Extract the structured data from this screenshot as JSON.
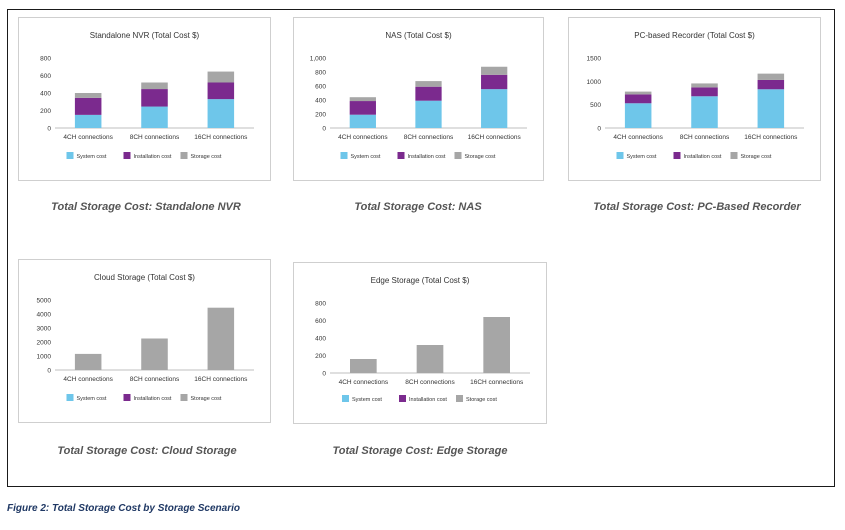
{
  "figure_caption": "Figure 2: Total Storage Cost by Storage Scenario",
  "colors": {
    "system": "#6ec6ea",
    "installation": "#7b2a8e",
    "storage": "#a6a6a6"
  },
  "chart_data": [
    {
      "type": "bar",
      "stacked": true,
      "title": "Standalone NVR (Total Cost $)",
      "caption": "Total Storage Cost: Standalone NVR",
      "categories": [
        "4CH connections",
        "8CH connections",
        "16CH connections"
      ],
      "ylim": [
        0,
        800
      ],
      "yticks": [
        "0",
        "200",
        "400",
        "600",
        "800"
      ],
      "series": [
        {
          "name": "System cost",
          "values": [
            150,
            245,
            330
          ]
        },
        {
          "name": "Installation cost",
          "values": [
            195,
            200,
            190
          ]
        },
        {
          "name": "Storage cost",
          "values": [
            55,
            75,
            125
          ]
        }
      ],
      "legend": "bottom",
      "grid": false
    },
    {
      "type": "bar",
      "stacked": true,
      "title": "NAS (Total Cost $)",
      "caption": "Total Storage Cost: NAS",
      "categories": [
        "4CH connections",
        "8CH connections",
        "16CH connections"
      ],
      "ylim": [
        0,
        1000
      ],
      "yticks": [
        "0",
        "200",
        "400",
        "600",
        "800",
        "1,000"
      ],
      "series": [
        {
          "name": "System cost",
          "values": [
            190,
            390,
            555
          ]
        },
        {
          "name": "Installation cost",
          "values": [
            195,
            200,
            205
          ]
        },
        {
          "name": "Storage cost",
          "values": [
            55,
            80,
            115
          ]
        }
      ],
      "legend": "bottom",
      "grid": false
    },
    {
      "type": "bar",
      "stacked": true,
      "title": "PC-based Recorder (Total Cost $)",
      "caption": "Total Storage Cost: PC-Based Recorder",
      "categories": [
        "4CH connections",
        "8CH connections",
        "16CH connections"
      ],
      "ylim": [
        0,
        1500
      ],
      "yticks": [
        "0",
        "500",
        "1000",
        "1500"
      ],
      "series": [
        {
          "name": "System cost",
          "values": [
            530,
            680,
            830
          ]
        },
        {
          "name": "Installation cost",
          "values": [
            190,
            190,
            200
          ]
        },
        {
          "name": "Storage cost",
          "values": [
            60,
            85,
            135
          ]
        }
      ],
      "legend": "bottom",
      "grid": false
    },
    {
      "type": "bar",
      "stacked": true,
      "title": "Cloud Storage (Total Cost $)",
      "caption": "Total Storage Cost: Cloud Storage",
      "categories": [
        "4CH connections",
        "8CH connections",
        "16CH connections"
      ],
      "ylim": [
        0,
        5000
      ],
      "yticks": [
        "0",
        "1000",
        "2000",
        "3000",
        "4000",
        "5000"
      ],
      "series": [
        {
          "name": "System cost",
          "values": [
            0,
            0,
            0
          ]
        },
        {
          "name": "Installation cost",
          "values": [
            0,
            0,
            0
          ]
        },
        {
          "name": "Storage cost",
          "values": [
            1150,
            2250,
            4450
          ]
        }
      ],
      "legend": "bottom",
      "grid": false
    },
    {
      "type": "bar",
      "stacked": true,
      "title": "Edge Storage (Total Cost $)",
      "caption": "Total Storage Cost: Edge Storage",
      "categories": [
        "4CH connections",
        "8CH connections",
        "16CH connections"
      ],
      "ylim": [
        0,
        800
      ],
      "yticks": [
        "0",
        "200",
        "400",
        "600",
        "800"
      ],
      "series": [
        {
          "name": "System cost",
          "values": [
            0,
            0,
            0
          ]
        },
        {
          "name": "Installation cost",
          "values": [
            0,
            0,
            0
          ]
        },
        {
          "name": "Storage cost",
          "values": [
            160,
            320,
            640
          ]
        }
      ],
      "legend": "bottom",
      "grid": false
    }
  ]
}
